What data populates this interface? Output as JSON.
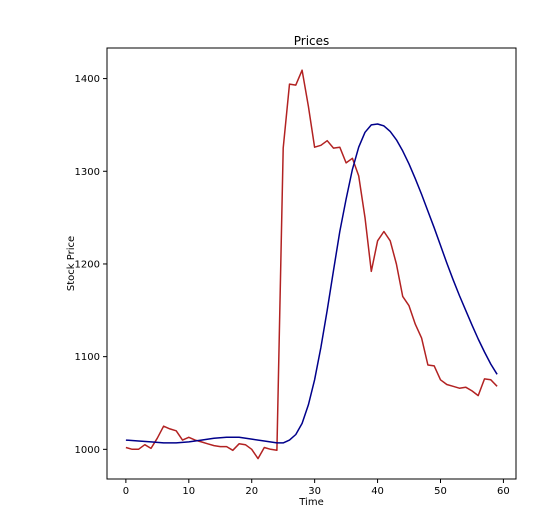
{
  "chart_data": {
    "type": "line",
    "title": "Prices",
    "xlabel": "Time",
    "ylabel": "Stock Price",
    "xlim": [
      -3,
      62
    ],
    "ylim": [
      968,
      1433
    ],
    "xticks": [
      0,
      10,
      20,
      30,
      40,
      50,
      60
    ],
    "yticks": [
      1000,
      1100,
      1200,
      1300,
      1400
    ],
    "grid": false,
    "legend": "none",
    "series": [
      {
        "color": "#b22222",
        "x": [
          0,
          1,
          2,
          3,
          4,
          5,
          6,
          7,
          8,
          9,
          10,
          11,
          12,
          13,
          14,
          15,
          16,
          17,
          18,
          19,
          20,
          21,
          22,
          23,
          24,
          25,
          26,
          27,
          28,
          29,
          30,
          31,
          32,
          33,
          34,
          35,
          36,
          37,
          38,
          39,
          40,
          41,
          42,
          43,
          44,
          45,
          46,
          47,
          48,
          49,
          50,
          51,
          52,
          53,
          54,
          55,
          56,
          57,
          58,
          59
        ],
        "values": [
          1002,
          1000,
          1000,
          1005,
          1001,
          1012,
          1025,
          1022,
          1020,
          1010,
          1013,
          1010,
          1008,
          1006,
          1004,
          1003,
          1003,
          999,
          1006,
          1005,
          1000,
          990,
          1002,
          1000,
          999,
          1325,
          1394,
          1393,
          1409,
          1370,
          1326,
          1328,
          1333,
          1325,
          1326,
          1309,
          1314,
          1295,
          1250,
          1192,
          1225,
          1235,
          1225,
          1200,
          1165,
          1155,
          1135,
          1120,
          1091,
          1090,
          1075,
          1070,
          1068,
          1066,
          1067,
          1063,
          1058,
          1076,
          1075,
          1068
        ]
      },
      {
        "color": "#00008b",
        "x": [
          0,
          2,
          4,
          6,
          8,
          10,
          12,
          14,
          16,
          18,
          20,
          22,
          24,
          25,
          26,
          27,
          28,
          29,
          30,
          31,
          32,
          33,
          34,
          35,
          36,
          37,
          38,
          39,
          40,
          41,
          42,
          43,
          44,
          45,
          46,
          47,
          48,
          49,
          50,
          51,
          52,
          53,
          54,
          55,
          56,
          57,
          58,
          59
        ],
        "values": [
          1010,
          1009,
          1008,
          1007,
          1007,
          1008,
          1010,
          1012,
          1013,
          1013,
          1011,
          1009,
          1007,
          1007,
          1010,
          1016,
          1028,
          1048,
          1075,
          1110,
          1150,
          1193,
          1235,
          1270,
          1302,
          1326,
          1342,
          1350,
          1351,
          1349,
          1343,
          1334,
          1322,
          1308,
          1292,
          1275,
          1257,
          1239,
          1220,
          1201,
          1183,
          1166,
          1150,
          1134,
          1119,
          1105,
          1092,
          1081
        ]
      }
    ]
  }
}
